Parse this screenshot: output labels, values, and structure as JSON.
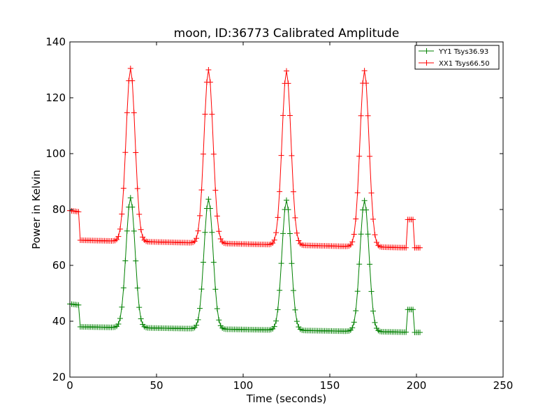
{
  "chart_data": {
    "type": "line",
    "title": "moon, ID:36773 Calibrated Amplitude",
    "xlabel": "Time (seconds)",
    "ylabel": "Power in Kelvin",
    "xlim": [
      0,
      250
    ],
    "ylim": [
      20,
      140
    ],
    "xticks": [
      0,
      50,
      100,
      150,
      200,
      250
    ],
    "yticks": [
      20,
      40,
      60,
      80,
      100,
      120,
      140
    ],
    "grid": false,
    "legend_position": "top-right",
    "series": [
      {
        "name": "YY1 Tsys36.93",
        "color": "#008000",
        "marker": "+",
        "x_start": 0,
        "x_end": 202,
        "x_step": 1,
        "x_gap_after_start": 6,
        "levels": [
          {
            "x0": 0,
            "x1": 5,
            "y0": 46.2,
            "y1": 45.8
          },
          {
            "x0": 6,
            "x1": 202,
            "y0": 38.0,
            "y1": 36.0
          },
          {
            "x0": 195,
            "x1": 198,
            "y0": 44.2,
            "y1": 44.2
          },
          {
            "x0": 199,
            "x1": 202,
            "y0": 36.0,
            "y1": 36.0
          }
        ],
        "peaks": [
          {
            "x": 35,
            "y": 84.2
          },
          {
            "x": 80,
            "y": 83.7
          },
          {
            "x": 125,
            "y": 83.3
          },
          {
            "x": 170,
            "y": 83.2
          }
        ]
      },
      {
        "name": "XX1 Tsys66.50",
        "color": "#ff0000",
        "marker": "+",
        "x_start": 0,
        "x_end": 202,
        "x_step": 1,
        "x_gap_after_start": 6,
        "levels": [
          {
            "x0": 0,
            "x1": 5,
            "y0": 79.6,
            "y1": 79.2
          },
          {
            "x0": 6,
            "x1": 202,
            "y0": 69.0,
            "y1": 66.2
          },
          {
            "x0": 195,
            "x1": 198,
            "y0": 76.4,
            "y1": 76.4
          },
          {
            "x0": 199,
            "x1": 202,
            "y0": 66.3,
            "y1": 66.3
          }
        ],
        "peaks": [
          {
            "x": 35,
            "y": 130.5
          },
          {
            "x": 80,
            "y": 130.0
          },
          {
            "x": 125,
            "y": 129.6
          },
          {
            "x": 170,
            "y": 129.7
          }
        ]
      }
    ]
  }
}
